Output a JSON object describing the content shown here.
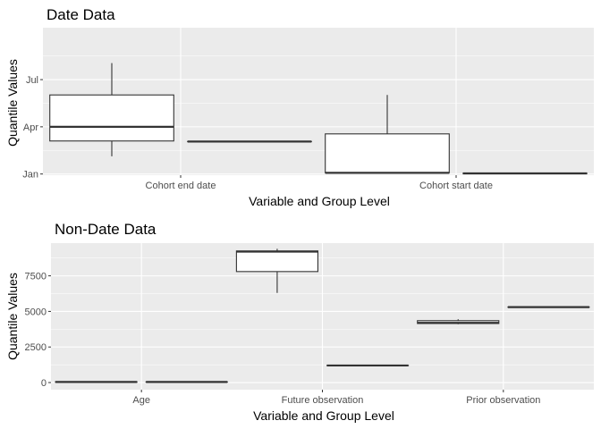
{
  "chart_data": [
    {
      "type": "boxplot",
      "title": "Date Data",
      "xlabel": "Variable and Group Level",
      "ylabel": "Quantile Values",
      "y_unit": "month",
      "ylim": [
        -0.1,
        12.4
      ],
      "y_ticks": [
        {
          "label": "Jan",
          "value": 0
        },
        {
          "label": "Apr",
          "value": 4
        },
        {
          "label": "Jul",
          "value": 8
        }
      ],
      "categories": [
        "Cohort end date",
        "Cohort start date"
      ],
      "boxes": [
        {
          "category": "Cohort end date",
          "group": 1,
          "min": 1.5,
          "q1": 2.8,
          "median": 4.0,
          "q3": 6.7,
          "max": 9.4
        },
        {
          "category": "Cohort end date",
          "group": 2,
          "min": 2.75,
          "q1": 2.75,
          "median": 2.75,
          "q3": 2.75,
          "max": 2.75
        },
        {
          "category": "Cohort start date",
          "group": 1,
          "min": 0.05,
          "q1": 0.1,
          "median": 0.1,
          "q3": 3.4,
          "max": 6.7
        },
        {
          "category": "Cohort start date",
          "group": 2,
          "min": 0.05,
          "q1": 0.05,
          "median": 0.05,
          "q3": 0.05,
          "max": 0.05
        }
      ],
      "grid": true
    },
    {
      "type": "boxplot",
      "title": "Non-Date Data",
      "xlabel": "Variable and Group Level",
      "ylabel": "Quantile Values",
      "ylim": [
        -500,
        9800
      ],
      "y_ticks": [
        {
          "label": "0",
          "value": 0
        },
        {
          "label": "2500",
          "value": 2500
        },
        {
          "label": "5000",
          "value": 5000
        },
        {
          "label": "7500",
          "value": 7500
        }
      ],
      "categories": [
        "Age",
        "Future observation",
        "Prior observation"
      ],
      "boxes": [
        {
          "category": "Age",
          "group": 1,
          "min": 0,
          "q1": 20,
          "median": 40,
          "q3": 60,
          "max": 80
        },
        {
          "category": "Age",
          "group": 2,
          "min": 40,
          "q1": 40,
          "median": 40,
          "q3": 40,
          "max": 40
        },
        {
          "category": "Future observation",
          "group": 1,
          "min": 6300,
          "q1": 7800,
          "median": 9200,
          "q3": 9250,
          "max": 9400
        },
        {
          "category": "Future observation",
          "group": 2,
          "min": 1200,
          "q1": 1200,
          "median": 1200,
          "q3": 1200,
          "max": 1200
        },
        {
          "category": "Prior observation",
          "group": 1,
          "min": 4100,
          "q1": 4150,
          "median": 4200,
          "q3": 4350,
          "max": 4450
        },
        {
          "category": "Prior observation",
          "group": 2,
          "min": 5300,
          "q1": 5300,
          "median": 5300,
          "q3": 5300,
          "max": 5300
        }
      ],
      "grid": true
    }
  ]
}
